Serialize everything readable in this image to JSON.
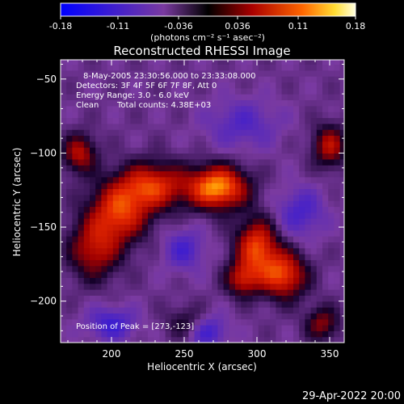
{
  "colorbar": {
    "ticks": [
      "-0.18",
      "-0.11",
      "-0.036",
      "0.036",
      "0.11",
      "0.18"
    ],
    "tick_values": [
      -0.18,
      -0.11,
      -0.036,
      0.036,
      0.11,
      0.18
    ],
    "range": [
      -0.18,
      0.18
    ],
    "unit_label": "(photons cm⁻² s⁻¹ asec⁻²)"
  },
  "footer": {
    "date": "29-Apr-2022 20:00"
  },
  "chart_data": {
    "type": "heatmap",
    "title": "Reconstructed RHESSI Image",
    "xlabel": "Heliocentric X (arcsec)",
    "ylabel": "Heliocentric Y (arcsec)",
    "xlim": [
      165,
      360
    ],
    "ylim": [
      -228,
      -37
    ],
    "xticks": [
      200,
      250,
      300,
      350
    ],
    "yticks": [
      -50,
      -100,
      -150,
      -200
    ],
    "annotations": {
      "line1": "8-May-2005 23:30:56.000 to 23:33:08.000",
      "line2": "Detectors: 3F 4F 5F 6F 7F 8F, Att 0",
      "line3": "Energy Range: 3.0 - 6.0 keV",
      "line4_method": "Clean",
      "line4_counts": "Total counts: 4.38E+03",
      "peak": "Position of Peak = [273,-123]"
    },
    "peak": [
      273,
      -123
    ],
    "colors": {
      "low": "#0000ff",
      "mid_low": "#7a3aa0",
      "zero": "#1a0040",
      "mid_high": "#cc1100",
      "high": "#ffff66",
      "max": "#ffffe0"
    },
    "sources": [
      {
        "x": 273,
        "y": -123,
        "sigma_x": 14,
        "sigma_y": 10,
        "amp": 0.18
      },
      {
        "x": 228,
        "y": -122,
        "sigma_x": 16,
        "sigma_y": 11,
        "amp": 0.13
      },
      {
        "x": 205,
        "y": -140,
        "sigma_x": 14,
        "sigma_y": 14,
        "amp": 0.13
      },
      {
        "x": 188,
        "y": -165,
        "sigma_x": 12,
        "sigma_y": 14,
        "amp": 0.1
      },
      {
        "x": 178,
        "y": -100,
        "sigma_x": 8,
        "sigma_y": 9,
        "amp": 0.1
      },
      {
        "x": 300,
        "y": -163,
        "sigma_x": 10,
        "sigma_y": 13,
        "amp": 0.14
      },
      {
        "x": 318,
        "y": -182,
        "sigma_x": 11,
        "sigma_y": 11,
        "amp": 0.14
      },
      {
        "x": 290,
        "y": -185,
        "sigma_x": 8,
        "sigma_y": 8,
        "amp": 0.1
      },
      {
        "x": 350,
        "y": -95,
        "sigma_x": 8,
        "sigma_y": 10,
        "amp": 0.1
      },
      {
        "x": 345,
        "y": -215,
        "sigma_x": 8,
        "sigma_y": 8,
        "amp": 0.08
      },
      {
        "x": 253,
        "y": -215,
        "sigma_x": 10,
        "sigma_y": 8,
        "amp": 0.06
      },
      {
        "x": 200,
        "y": -215,
        "sigma_x": 12,
        "sigma_y": 8,
        "amp": -0.07
      },
      {
        "x": 250,
        "y": -165,
        "sigma_x": 10,
        "sigma_y": 10,
        "amp": -0.06
      },
      {
        "x": 330,
        "y": -140,
        "sigma_x": 12,
        "sigma_y": 12,
        "amp": -0.06
      },
      {
        "x": 290,
        "y": -80,
        "sigma_x": 18,
        "sigma_y": 12,
        "amp": -0.05
      },
      {
        "x": 265,
        "y": -220,
        "sigma_x": 10,
        "sigma_y": 8,
        "amp": -0.08
      }
    ]
  }
}
